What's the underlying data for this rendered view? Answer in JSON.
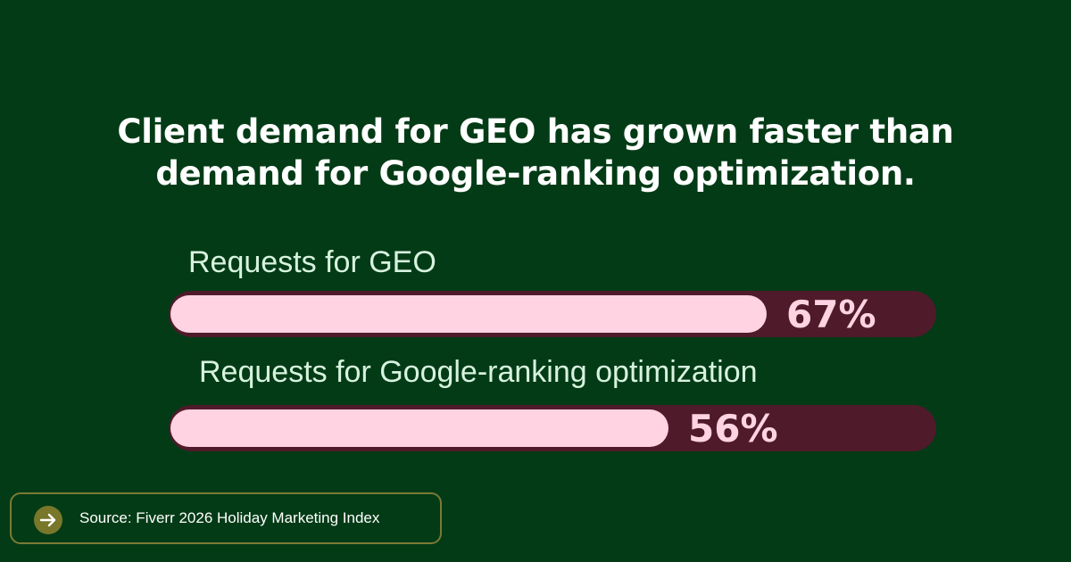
{
  "headline": {
    "line1": "Client demand for GEO has grown faster than",
    "line2": "demand for Google-ranking optimization."
  },
  "chart_data": {
    "type": "bar",
    "orientation": "horizontal",
    "categories": [
      "Requests for GEO",
      "Requests for Google-ranking optimization"
    ],
    "values": [
      67,
      56
    ],
    "value_labels": [
      "67%",
      "56%"
    ],
    "unit": "%",
    "xlim": [
      0,
      100
    ],
    "title": "",
    "xlabel": "",
    "ylabel": "",
    "grid": false,
    "colors": {
      "fill": "#ffd3e2",
      "track": "#4f1a2a",
      "label": "#d7f3df"
    }
  },
  "source": {
    "icon": "arrow-right-icon",
    "text": "Source: Fiverr 2026 Holiday Marketing Index"
  },
  "colors": {
    "background": "#033b16",
    "source_border": "#7b7a35",
    "icon_bg": "#78772a"
  }
}
